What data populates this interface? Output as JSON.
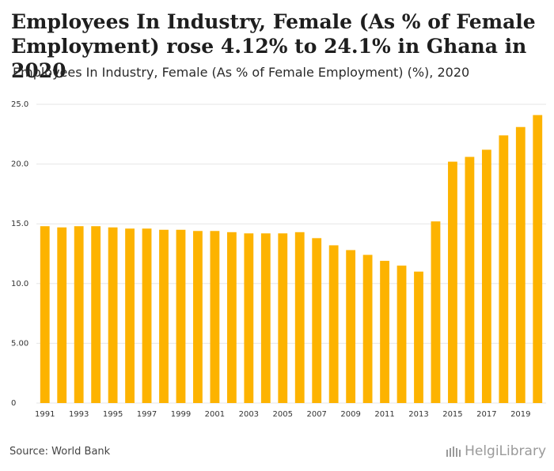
{
  "header": {
    "title": "Employees In Industry, Female (As % of Female Employment) rose 4.12% to 24.1% in Ghana in 2020",
    "subtitle": "Employees In Industry, Female (As % of Female Employment) (%), 2020"
  },
  "footer": {
    "source": "Source: World Bank",
    "brand": "HelgiLibrary"
  },
  "colors": {
    "bar": "#FDB300",
    "grid": "#e6e6e6",
    "axis_text": "#333333"
  },
  "chart_data": {
    "type": "bar",
    "title": "",
    "xlabel": "",
    "ylabel": "",
    "ylim": [
      0,
      25
    ],
    "y_ticks": [
      0,
      5,
      10,
      15,
      20,
      25
    ],
    "y_tick_labels": [
      "0",
      "5.00",
      "10.0",
      "15.0",
      "20.0",
      "25.0"
    ],
    "categories": [
      "1991",
      "1992",
      "1993",
      "1994",
      "1995",
      "1996",
      "1997",
      "1998",
      "1999",
      "2000",
      "2001",
      "2002",
      "2003",
      "2004",
      "2005",
      "2006",
      "2007",
      "2008",
      "2009",
      "2010",
      "2011",
      "2012",
      "2013",
      "2014",
      "2015",
      "2016",
      "2017",
      "2018",
      "2019",
      "2020"
    ],
    "x_tick_labels": [
      "1991",
      "1993",
      "1995",
      "1997",
      "1999",
      "2001",
      "2003",
      "2005",
      "2007",
      "2009",
      "2011",
      "2013",
      "2015",
      "2017",
      "2019"
    ],
    "values": [
      14.8,
      14.7,
      14.8,
      14.8,
      14.7,
      14.6,
      14.6,
      14.5,
      14.5,
      14.4,
      14.4,
      14.3,
      14.2,
      14.2,
      14.2,
      14.3,
      13.8,
      13.2,
      12.8,
      12.4,
      11.9,
      11.5,
      11.0,
      15.2,
      20.2,
      20.6,
      21.2,
      22.4,
      23.1,
      24.1
    ]
  }
}
